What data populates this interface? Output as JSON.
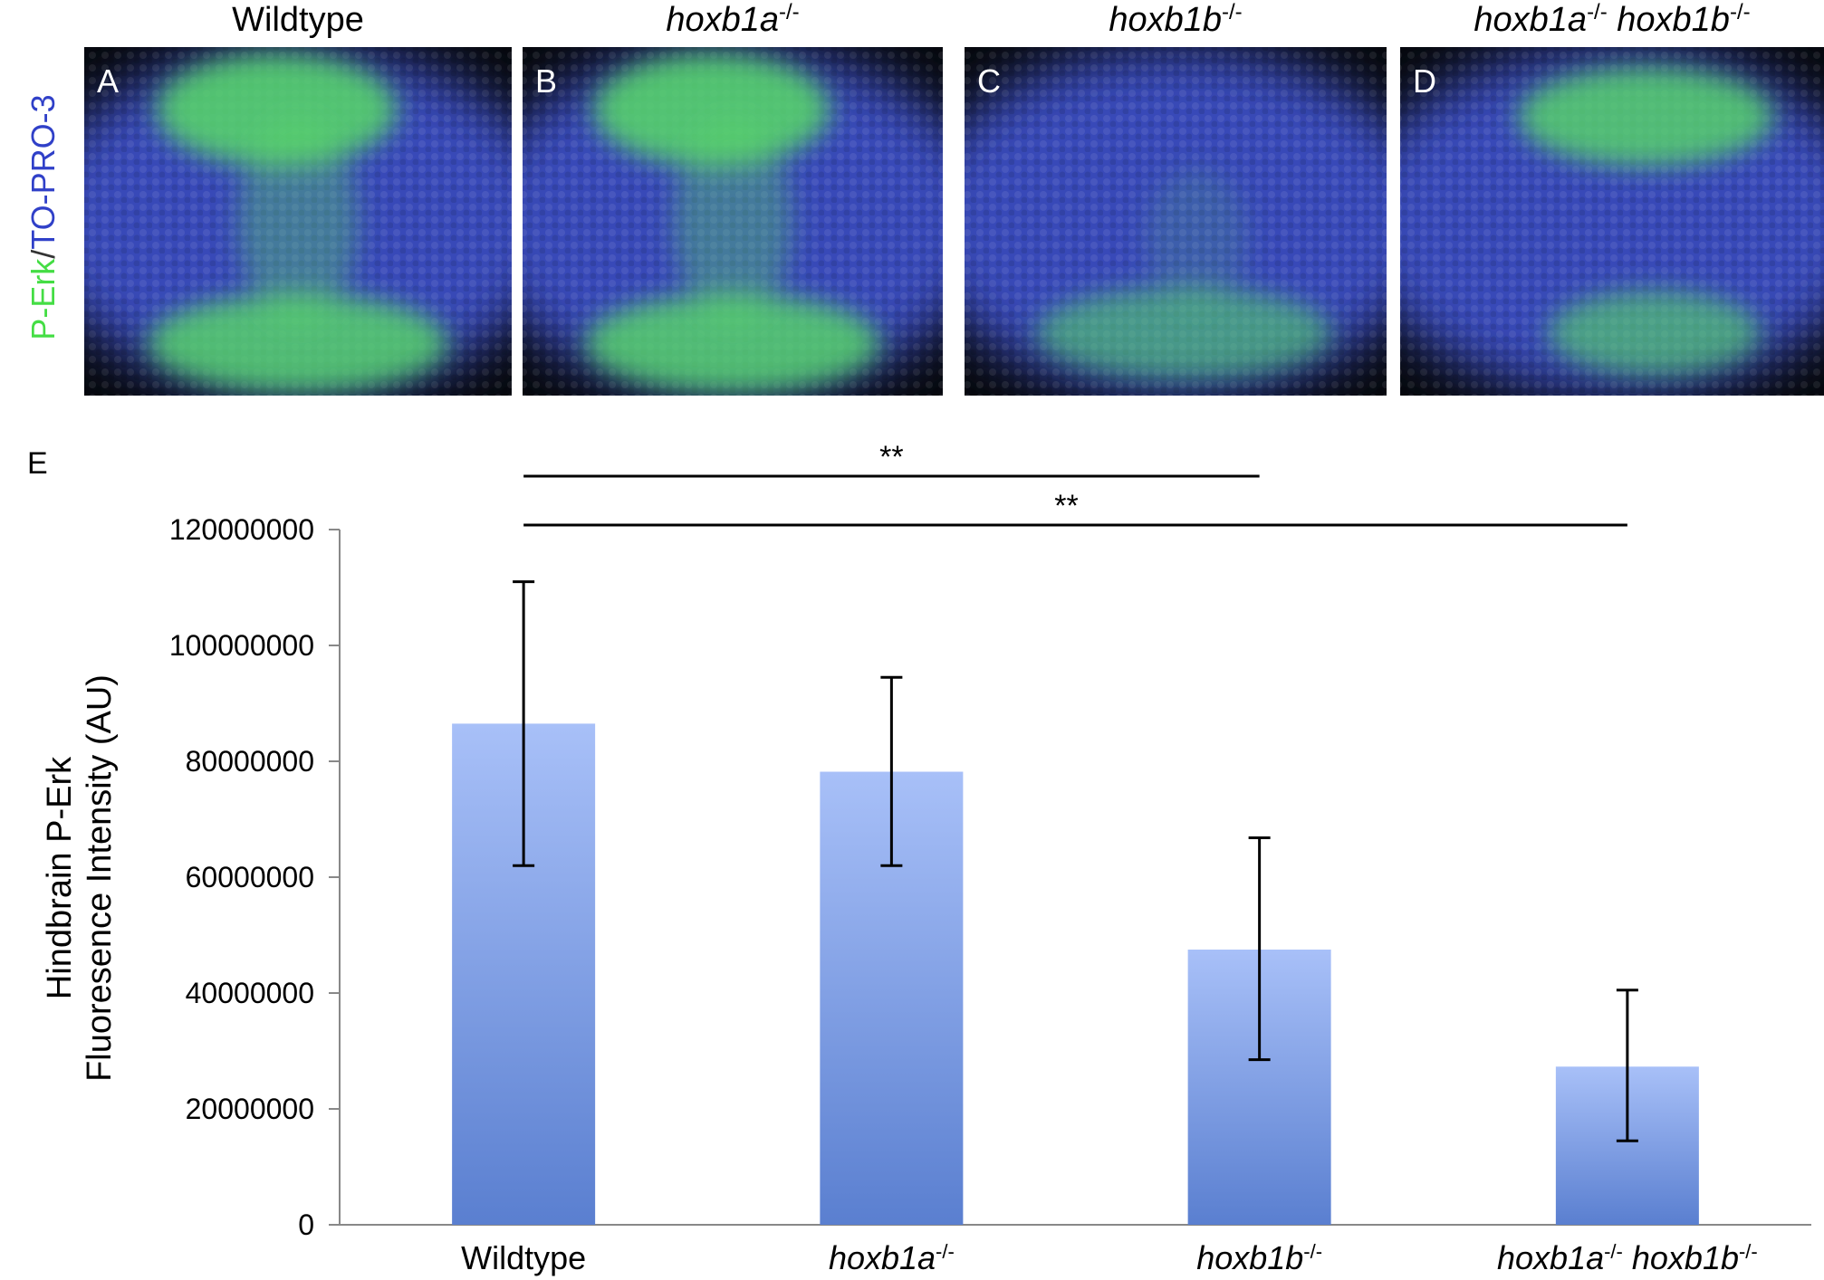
{
  "micrographs": {
    "side_label": {
      "green": "P-Erk",
      "sep": "/",
      "blue": "TO-PRO-3"
    },
    "colors": {
      "nuclear": "#3848b8",
      "signal": "#58d868",
      "background": "#06080c"
    },
    "panels": [
      {
        "letter": "A",
        "title_parts": [
          {
            "t": "Wildtype",
            "italic": false
          }
        ],
        "signal_pattern": "strong-dorsal-ventral"
      },
      {
        "letter": "B",
        "title_parts": [
          {
            "t": "hoxb1a",
            "italic": true
          },
          {
            "t": "-/-",
            "sup": true
          }
        ],
        "signal_pattern": "strong-dorsal-ventral"
      },
      {
        "letter": "C",
        "title_parts": [
          {
            "t": "hoxb1b",
            "italic": true
          },
          {
            "t": "-/-",
            "sup": true
          }
        ],
        "signal_pattern": "weak-ventral"
      },
      {
        "letter": "D",
        "title_parts": [
          {
            "t": "hoxb1a",
            "italic": true
          },
          {
            "t": "-/-",
            "sup": true
          },
          {
            "t": " hoxb1b",
            "italic": true
          },
          {
            "t": "-/-",
            "sup": true
          }
        ],
        "signal_pattern": "moderate-dorsal-ventral"
      }
    ]
  },
  "panel_e_label": "E",
  "chart_data": {
    "type": "bar",
    "categories": [
      [
        {
          "t": "Wildtype",
          "italic": false
        }
      ],
      [
        {
          "t": "hoxb1a",
          "italic": true
        },
        {
          "t": "-/-",
          "sup": true
        }
      ],
      [
        {
          "t": "hoxb1b",
          "italic": true
        },
        {
          "t": "-/-",
          "sup": true
        }
      ],
      [
        {
          "t": "hoxb1a",
          "italic": true
        },
        {
          "t": "-/-",
          "sup": true
        },
        {
          "t": " hoxb1b",
          "italic": true
        },
        {
          "t": "-/-",
          "sup": true
        }
      ]
    ],
    "values": [
      86500000,
      78200000,
      47500000,
      27300000
    ],
    "error_low": [
      62000000,
      62000000,
      28500000,
      14500000
    ],
    "error_high": [
      111000000,
      94500000,
      66800000,
      40500000
    ],
    "ylabel_lines": [
      "Hindbrain P-Erk",
      "Fluoresence Intensity (AU)"
    ],
    "ylim": [
      0,
      120000000
    ],
    "yticks": [
      0,
      20000000,
      40000000,
      60000000,
      80000000,
      100000000,
      120000000
    ],
    "ytick_labels": [
      "0",
      "20000000",
      "40000000",
      "60000000",
      "80000000",
      "100000000",
      "120000000"
    ],
    "significance": [
      {
        "from": 0,
        "to": 2,
        "label": "**"
      },
      {
        "from": 0,
        "to": 3,
        "label": "**"
      }
    ],
    "bar_color_top": "#a8c0f8",
    "bar_color_bottom": "#5a7fd0",
    "grid": false
  }
}
